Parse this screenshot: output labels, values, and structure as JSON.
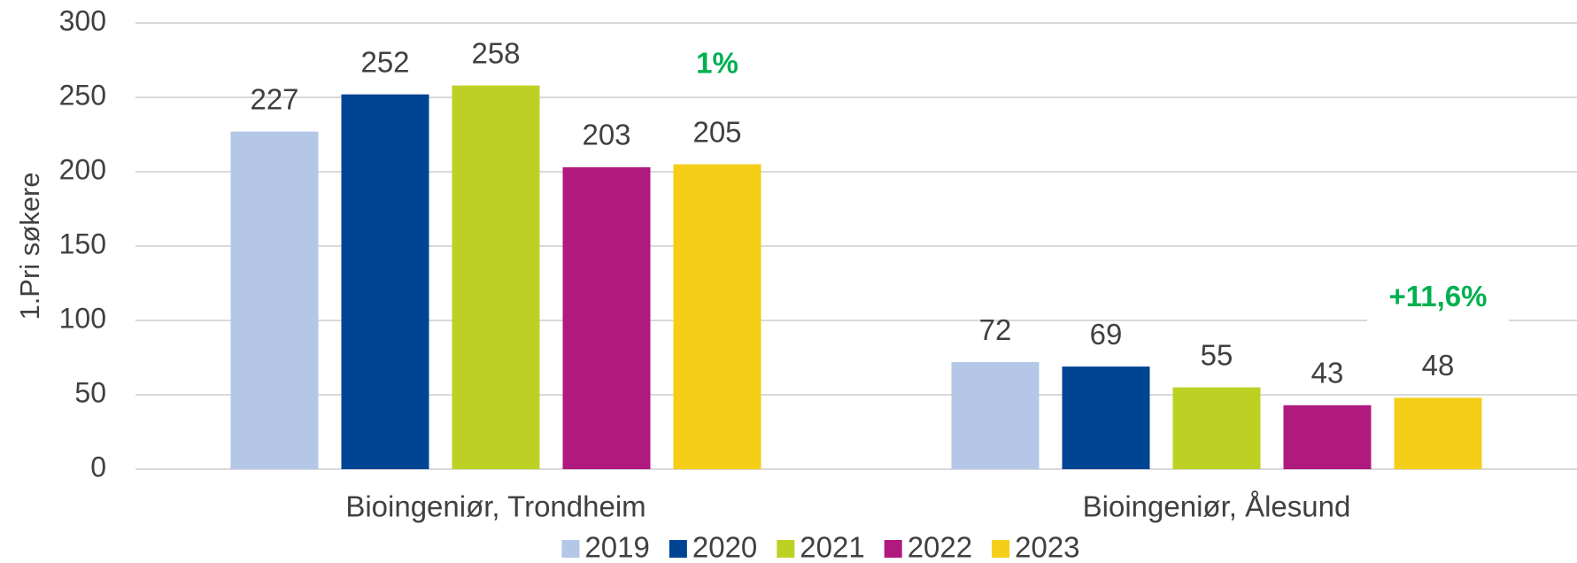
{
  "chart_data": {
    "type": "bar",
    "y_label": "1.Pri søkere",
    "categories": [
      "Bioingeniør, Trondheim",
      "Bioingeniør, Ålesund"
    ],
    "series": [
      {
        "name": "2019",
        "color": "#b4c7e7",
        "values": [
          227,
          72
        ]
      },
      {
        "name": "2020",
        "color": "#004494",
        "values": [
          252,
          69
        ]
      },
      {
        "name": "2021",
        "color": "#bdd124",
        "values": [
          258,
          55
        ]
      },
      {
        "name": "2022",
        "color": "#b0197e",
        "values": [
          203,
          43
        ]
      },
      {
        "name": "2023",
        "color": "#f5cf17",
        "values": [
          205,
          48
        ]
      }
    ],
    "annotations": [
      {
        "text": "1%",
        "category": 0,
        "series": 4,
        "color": "#00b050"
      },
      {
        "text": "+11,6%",
        "category": 1,
        "series": 4,
        "color": "#00b050"
      }
    ],
    "ylim": [
      0,
      300
    ],
    "yticks": [
      0,
      50,
      100,
      150,
      200,
      250,
      300
    ],
    "grid": true,
    "legend": "bottom"
  }
}
